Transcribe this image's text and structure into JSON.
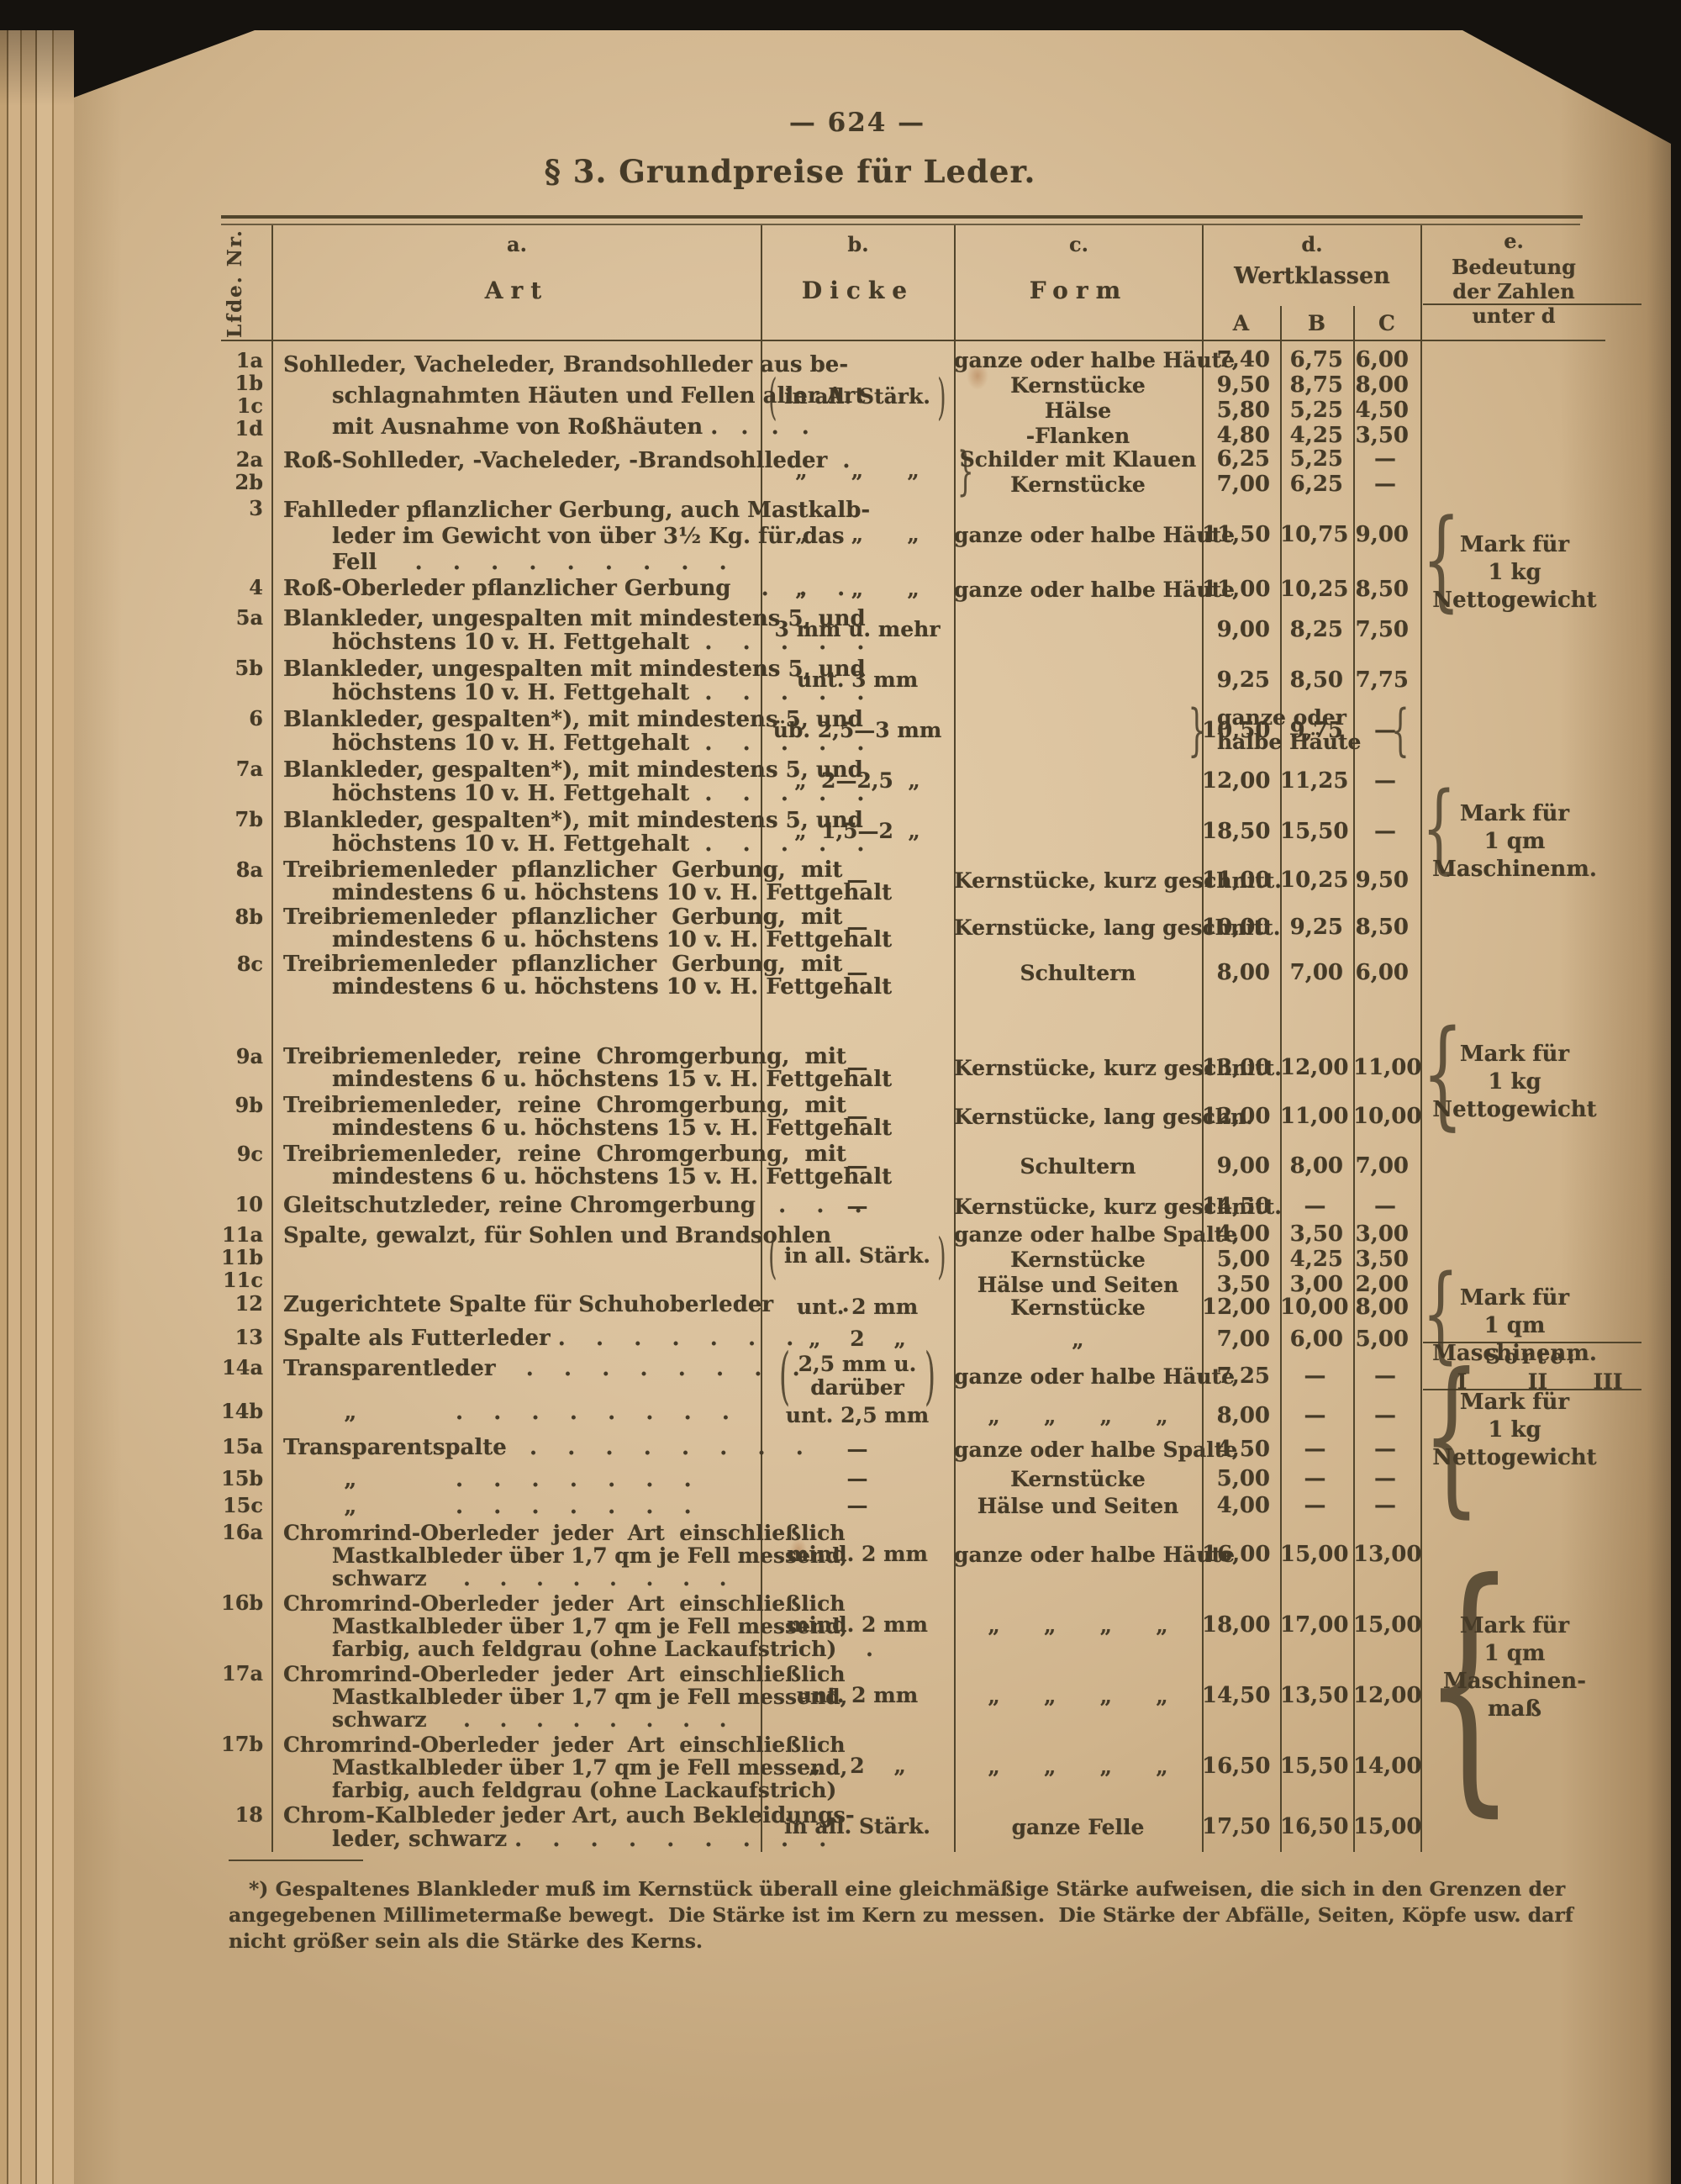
{
  "page": {
    "number": "—  624  —",
    "title": "§ 3.  Grundpreise für Leder.",
    "colors": {
      "paper": "#dac19d",
      "ink": "#453a27"
    }
  },
  "table": {
    "nr_header": "Lfde. Nr.",
    "col_headers": {
      "a": {
        "letter": "a.",
        "label": "Art"
      },
      "b": {
        "letter": "b.",
        "label": "Dicke"
      },
      "c": {
        "letter": "c.",
        "label": "Form"
      },
      "d": {
        "letter": "d.",
        "label": "Wertklassen",
        "classes": [
          "A",
          "B",
          "C"
        ]
      },
      "e": {
        "letter": "e.",
        "label_lines": [
          "Bedeutung",
          "der Zahlen",
          "unter d"
        ]
      }
    },
    "sorte_header": {
      "label": "Sorte:",
      "cols": [
        "I",
        "II",
        "III"
      ]
    },
    "form_span_5_7": "ganze oder halbe Häute",
    "rows": [
      {
        "id": "1",
        "nr": [
          "1a",
          "1b",
          "1c",
          "1d"
        ],
        "art": [
          "Sohlleder, Vacheleder, Brandsohlleder aus be-",
          "schlagnahmten Häuten und Fellen aller Art",
          "mit Ausnahme von Roßhäuten .   .   .   ."
        ],
        "dicke": [
          "in all. Stärk."
        ],
        "dicke_brk": true,
        "forms": [
          [
            "ganze oder halbe Häute",
            "7,40",
            "6,75",
            "6,00"
          ],
          [
            "Kernstücke",
            "9,50",
            "8,75",
            "8,00"
          ],
          [
            "Hälse",
            "5,80",
            "5,25",
            "4,50"
          ],
          [
            "-Flanken",
            "4,80",
            "4,25",
            "3,50"
          ]
        ]
      },
      {
        "id": "2",
        "nr": [
          "2a",
          "2b"
        ],
        "art": [
          "Roß-Sohlleder, -Vacheleder, -Brandsohlleder  ."
        ],
        "dicke": [
          "„      „      „"
        ],
        "form_brace": true,
        "forms": [
          [
            "Schilder mit Klauen",
            "6,25",
            "5,25",
            "—"
          ],
          [
            "Kernstücke",
            "7,00",
            "6,25",
            "—"
          ]
        ]
      },
      {
        "id": "3",
        "nr": [
          "3"
        ],
        "art": [
          "Fahlleder pflanzlicher Gerbung, auch Mastkalb-",
          "leder im Gewicht von über 3½ Kg. für das",
          "Fell     .    .    .    .    .    .    .    .    ."
        ],
        "dicke": [
          "„      „      „"
        ],
        "forms": [
          [
            "ganze oder halbe Häute",
            "11,50",
            "10,75",
            "9,00"
          ]
        ]
      },
      {
        "id": "4",
        "nr": [
          "4"
        ],
        "art": [
          "Roß-Oberleder pflanzlicher Gerbung    .    .    ."
        ],
        "dicke": [
          "„      „      „"
        ],
        "forms": [
          [
            "ganze oder halbe Häute",
            "11,00",
            "10,25",
            "8,50"
          ]
        ]
      },
      {
        "id": "5a",
        "nr": [
          "5a"
        ],
        "art": [
          "Blankleder, ungespalten mit mindestens 5, und",
          "höchstens 10 v. H. Fettgehalt  .    .    .    .    ."
        ],
        "dicke": [
          "3 mm u. mehr"
        ],
        "forms": [
          [
            "",
            "9,00",
            "8,25",
            "7,50"
          ]
        ]
      },
      {
        "id": "5b",
        "nr": [
          "5b"
        ],
        "art": [
          "Blankleder, ungespalten mit mindestens 5, und",
          "höchstens 10 v. H. Fettgehalt  .    .    .    .    ."
        ],
        "dicke": [
          "unt. 3 mm"
        ],
        "forms": [
          [
            "",
            "9,25",
            "8,50",
            "7,75"
          ]
        ]
      },
      {
        "id": "6",
        "nr": [
          "6"
        ],
        "art": [
          "Blankleder, gespalten*), mit mindestens 5, und",
          "höchstens 10 v. H. Fettgehalt  .    .    .    .    ."
        ],
        "dicke": [
          "üb. 2,5—3 mm"
        ],
        "forms": [
          [
            "",
            "10,50",
            "9,75",
            "—"
          ]
        ]
      },
      {
        "id": "7a",
        "nr": [
          "7a"
        ],
        "art": [
          "Blankleder, gespalten*), mit mindestens 5, und",
          "höchstens 10 v. H. Fettgehalt  .    .    .    .    ."
        ],
        "dicke": [
          "„  2—2,5  „"
        ],
        "forms": [
          [
            "",
            "12,00",
            "11,25",
            "—"
          ]
        ]
      },
      {
        "id": "7b",
        "nr": [
          "7b"
        ],
        "art": [
          "Blankleder, gespalten*), mit mindestens 5, und",
          "höchstens 10 v. H. Fettgehalt  .    .    .    .    ."
        ],
        "dicke": [
          "„  1,5—2  „"
        ],
        "forms": [
          [
            "",
            "18,50",
            "15,50",
            "—"
          ]
        ]
      },
      {
        "id": "8a",
        "nr": [
          "8a"
        ],
        "art": [
          "Treibriemenleder  pflanzlicher  Gerbung,  mit",
          "mindestens 6 u. höchstens 10 v. H. Fettgehalt"
        ],
        "dicke": [
          "—"
        ],
        "forms": [
          [
            "Kernstücke, kurz geschnitt.",
            "11,00",
            "10,25",
            "9,50"
          ]
        ]
      },
      {
        "id": "8b",
        "nr": [
          "8b"
        ],
        "art": [
          "Treibriemenleder  pflanzlicher  Gerbung,  mit",
          "mindestens 6 u. höchstens 10 v. H. Fettgehalt"
        ],
        "dicke": [
          "—"
        ],
        "forms": [
          [
            "Kernstücke, lang geschnitt.",
            "10,00",
            "9,25",
            "8,50"
          ]
        ]
      },
      {
        "id": "8c",
        "nr": [
          "8c"
        ],
        "art": [
          "Treibriemenleder  pflanzlicher  Gerbung,  mit",
          "mindestens 6 u. höchstens 10 v. H. Fettgehalt"
        ],
        "dicke": [
          "—"
        ],
        "forms": [
          [
            "Schultern",
            "8,00",
            "7,00",
            "6,00"
          ]
        ]
      },
      {
        "id": "sorte",
        "type": "sorte",
        "nr": [],
        "art": [],
        "dicke": [],
        "forms": []
      },
      {
        "id": "9a",
        "nr": [
          "9a"
        ],
        "art": [
          "Treibriemenleder,  reine  Chromgerbung,  mit",
          "mindestens 6 u. höchstens 15 v. H. Fettgehalt"
        ],
        "dicke": [
          "—"
        ],
        "forms": [
          [
            "Kernstücke, kurz geschnitt.",
            "13,00",
            "12,00",
            "11,00"
          ]
        ]
      },
      {
        "id": "9b",
        "nr": [
          "9b"
        ],
        "art": [
          "Treibriemenleder,  reine  Chromgerbung,  mit",
          "mindestens 6 u. höchstens 15 v. H. Fettgehalt"
        ],
        "dicke": [
          "—"
        ],
        "forms": [
          [
            "Kernstücke, lang geschn.",
            "12,00",
            "11,00",
            "10,00"
          ]
        ]
      },
      {
        "id": "9c",
        "nr": [
          "9c"
        ],
        "art": [
          "Treibriemenleder,  reine  Chromgerbung,  mit",
          "mindestens 6 u. höchstens 15 v. H. Fettgehalt"
        ],
        "dicke": [
          "—"
        ],
        "forms": [
          [
            "Schultern",
            "9,00",
            "8,00",
            "7,00"
          ]
        ]
      },
      {
        "id": "10",
        "nr": [
          "10"
        ],
        "art": [
          "Gleitschutzleder, reine Chromgerbung   .    .    ."
        ],
        "dicke": [
          "—"
        ],
        "forms": [
          [
            "Kernstücke, kurz geschnitt.",
            "14,50",
            "—",
            "—"
          ]
        ]
      },
      {
        "id": "11",
        "nr": [
          "11a",
          "11b",
          "11c"
        ],
        "art": [
          "Spalte, gewalzt, für Sohlen und Brandsohlen"
        ],
        "dicke": [
          "in all. Stärk."
        ],
        "dicke_brk": true,
        "forms": [
          [
            "ganze oder halbe Spalte",
            "4,00",
            "3,50",
            "3,00"
          ],
          [
            "Kernstücke",
            "5,00",
            "4,25",
            "3,50"
          ],
          [
            "Hälse und Seiten",
            "3,50",
            "3,00",
            "2,00"
          ]
        ]
      },
      {
        "id": "12",
        "nr": [
          "12"
        ],
        "art": [
          "Zugerichtete Spalte für Schuhoberleder    .    ."
        ],
        "dicke": [
          "unt. 2 mm"
        ],
        "forms": [
          [
            "Kernstücke",
            "12,00",
            "10,00",
            "8,00"
          ]
        ]
      },
      {
        "id": "13",
        "nr": [
          "13"
        ],
        "art": [
          "Spalte als Futterleder .    .    .    .    .    .    ."
        ],
        "dicke": [
          "„    2    „"
        ],
        "forms": [
          [
            "„",
            "7,00",
            "6,00",
            "5,00"
          ]
        ]
      },
      {
        "id": "14a",
        "nr": [
          "14a"
        ],
        "art": [
          "Transparentleder    .    .    .    .    .    .    .    ."
        ],
        "dicke": [
          "2,5 mm u.",
          "darüber"
        ],
        "dicke_brk": true,
        "forms": [
          [
            "ganze oder halbe Häute",
            "7,25",
            "—",
            "—"
          ]
        ]
      },
      {
        "id": "14b",
        "nr": [
          "14b"
        ],
        "art": [
          "        „             .    .    .    .    .    .    .    ."
        ],
        "dicke": [
          "unt. 2,5 mm"
        ],
        "forms": [
          [
            "„      „      „      „",
            "8,00",
            "—",
            "—"
          ]
        ]
      },
      {
        "id": "15a",
        "nr": [
          "15a"
        ],
        "art": [
          "Transparentspalte   .    .    .    .    .    .    .    ."
        ],
        "dicke": [
          "—"
        ],
        "forms": [
          [
            "ganze oder halbe Spalte",
            "4,50",
            "—",
            "—"
          ]
        ]
      },
      {
        "id": "15b",
        "nr": [
          "15b"
        ],
        "art": [
          "        „             .    .    .    .    .    .    ."
        ],
        "dicke": [
          "—"
        ],
        "forms": [
          [
            "Kernstücke",
            "5,00",
            "—",
            "—"
          ]
        ]
      },
      {
        "id": "15c",
        "nr": [
          "15c"
        ],
        "art": [
          "        „             .    .    .    .    .    .    ."
        ],
        "dicke": [
          "—"
        ],
        "forms": [
          [
            "Hälse und Seiten",
            "4,00",
            "—",
            "—"
          ]
        ]
      },
      {
        "id": "16a",
        "nr": [
          "16a"
        ],
        "art": [
          "Chromrind-Oberleder  jeder  Art  einschließlich",
          "Mastkalbleder über 1,7 qm je Fell messend,",
          "schwarz     .    .    .    .    .    .    .    ."
        ],
        "dicke": [
          "mind. 2 mm"
        ],
        "forms": [
          [
            "ganze oder halbe Häute",
            "16,00",
            "15,00",
            "13,00"
          ]
        ]
      },
      {
        "id": "16b",
        "nr": [
          "16b"
        ],
        "art": [
          "Chromrind-Oberleder  jeder  Art  einschließlich",
          "Mastkalbleder über 1,7 qm je Fell messend,",
          "farbig, auch feldgrau (ohne Lackaufstrich)    ."
        ],
        "dicke": [
          "mind. 2 mm"
        ],
        "forms": [
          [
            "„      „      „      „",
            "18,00",
            "17,00",
            "15,00"
          ]
        ]
      },
      {
        "id": "17a",
        "nr": [
          "17a"
        ],
        "art": [
          "Chromrind-Oberleder  jeder  Art  einschließlich",
          "Mastkalbleder über 1,7 qm je Fell messend,",
          "schwarz     .    .    .    .    .    .    .    ."
        ],
        "dicke": [
          "unt. 2 mm"
        ],
        "forms": [
          [
            "„      „      „      „",
            "14,50",
            "13,50",
            "12,00"
          ]
        ]
      },
      {
        "id": "17b",
        "nr": [
          "17b"
        ],
        "art": [
          "Chromrind-Oberleder  jeder  Art  einschließlich",
          "Mastkalbleder über 1,7 qm je Fell messend,",
          "farbig, auch feldgrau (ohne Lackaufstrich)"
        ],
        "dicke": [
          "„    2    „"
        ],
        "forms": [
          [
            "„      „      „      „",
            "16,50",
            "15,50",
            "14,00"
          ]
        ]
      },
      {
        "id": "18",
        "nr": [
          "18"
        ],
        "art": [
          "Chrom-Kalbleder jeder Art, auch Bekleidungs-",
          "leder, schwarz .    .    .    .    .    .    .    .    ."
        ],
        "dicke": [
          "in all. Stärk."
        ],
        "forms": [
          [
            "ganze Felle",
            "17,50",
            "16,50",
            "15,00"
          ]
        ]
      }
    ],
    "e_blocks": [
      {
        "lines": [
          "Mark für",
          "1 kg",
          "Nettogewicht"
        ]
      },
      {
        "lines": [
          "Mark für",
          "1 qm",
          "Maschinenm."
        ]
      },
      {
        "lines": [
          "Mark für",
          "1 kg",
          "Nettogewicht"
        ]
      },
      {
        "lines": [
          "Mark für",
          "1 qm",
          "Maschinenm."
        ]
      },
      {
        "lines": [
          "Mark für",
          "1 kg",
          "Nettogewicht"
        ]
      },
      {
        "lines": [
          "Mark für",
          "1 qm",
          "Maschinen-",
          "maß"
        ]
      }
    ],
    "footnote_lines": [
      "*) Gespaltenes Blankleder muß im Kernstück überall eine gleichmäßige Stärke aufweisen, die sich in den Grenzen der",
      "angegebenen Millimetermaße bewegt.  Die Stärke ist im Kern zu messen.  Die Stärke der Abfälle, Seiten, Köpfe usw. darf",
      "nicht größer sein als die Stärke des Kerns."
    ]
  }
}
